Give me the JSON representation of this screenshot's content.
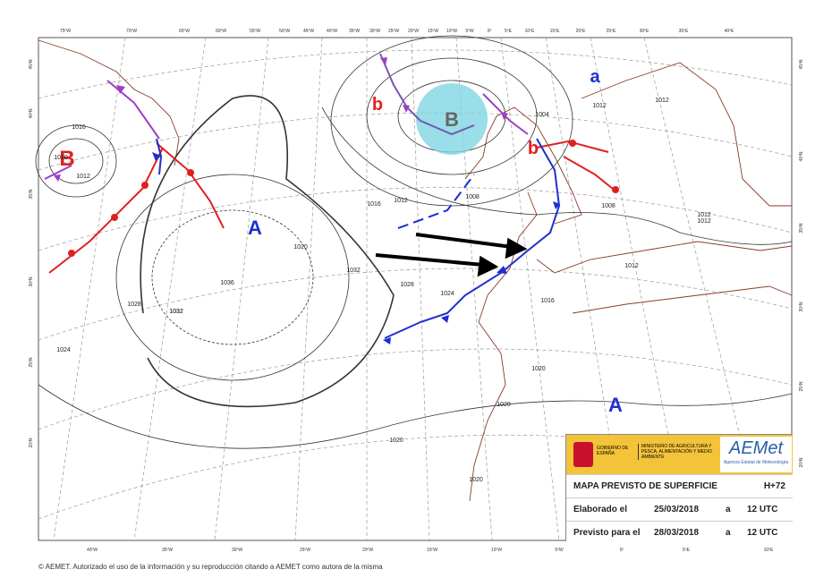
{
  "map": {
    "longitude_labels_top": [
      "75ºW",
      "70ºW",
      "65ºW",
      "60ºW",
      "55ºW",
      "50ºW",
      "45ºW",
      "40ºW",
      "35ºW",
      "30ºW",
      "25ºW",
      "20ºW",
      "15ºW",
      "10ºW",
      "5ºW",
      "0º",
      "5ºE",
      "10ºE",
      "15ºE",
      "20ºE",
      "25ºE",
      "30ºE",
      "35ºE",
      "40ºE"
    ],
    "longitude_labels_bottom": [
      "40ºW",
      "35ºW",
      "30ºW",
      "25ºW",
      "20ºW",
      "15ºW",
      "10ºW",
      "5ºW",
      "0º",
      "5ºE",
      "10ºE"
    ],
    "latitude_labels_left": [
      "45ºN",
      "40ºN",
      "35ºN",
      "30ºN",
      "25ºN",
      "20ºN"
    ],
    "latitude_labels_right": [
      "45ºN",
      "40ºN",
      "35ºN",
      "30ºN",
      "25ºN",
      "20ºN"
    ],
    "pressure_centers": [
      "B",
      "A",
      "b",
      "B",
      "a",
      "b",
      "A"
    ],
    "isobar_labels": [
      "1012",
      "1016",
      "1020",
      "1012",
      "1016",
      "1020",
      "1032",
      "1036",
      "1032",
      "1028",
      "1028",
      "1024",
      "1032",
      "1024",
      "1016",
      "1012",
      "1012",
      "1012",
      "1008",
      "1004",
      "1012",
      "1012",
      "1008",
      "1020",
      "1020",
      "1020",
      "1020"
    ]
  },
  "legend_box": {
    "government": "GOBIERNO DE ESPAÑA",
    "ministry": "MINISTERIO DE AGRICULTURA Y PESCA, ALIMENTACIÓN Y MEDIO AMBIENTE",
    "agency_logo": "AEMet",
    "agency_name": "Agencia Estatal de Meteorología",
    "title": "MAPA PREVISTO DE SUPERFICIE",
    "lead_time": "H+72",
    "rows": [
      [
        "Elaborado el",
        "25/03/2018",
        "a",
        "12 UTC"
      ],
      [
        "Previsto para el",
        "28/03/2018",
        "a",
        "12 UTC"
      ]
    ]
  },
  "footer": "© AEMET. Autorizado el uso de la información y su reproducción citando a AEMET como autora de la misma"
}
